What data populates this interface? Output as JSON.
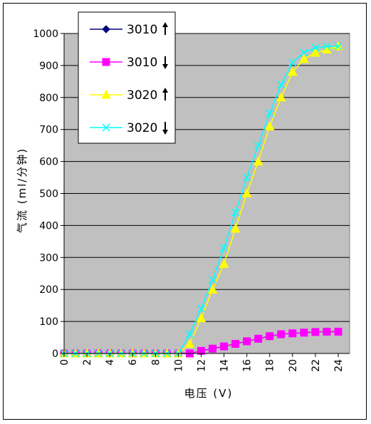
{
  "chart_data": {
    "type": "line",
    "xlabel": "电压 (V)",
    "ylabel": "气流 (ml/分钟)",
    "xlim": [
      0,
      25
    ],
    "ylim": [
      0,
      1000
    ],
    "x_ticks": [
      0,
      2,
      4,
      6,
      8,
      10,
      12,
      14,
      16,
      18,
      20,
      22,
      24
    ],
    "y_ticks": [
      0,
      100,
      200,
      300,
      400,
      500,
      600,
      700,
      800,
      900,
      1000
    ],
    "grid": "horizontal",
    "plot_background": "#c0c0c0",
    "legend_position": "top-left",
    "x": [
      0,
      1,
      2,
      3,
      4,
      5,
      6,
      7,
      8,
      9,
      10,
      11,
      12,
      13,
      14,
      15,
      16,
      17,
      18,
      19,
      20,
      21,
      22,
      23,
      24
    ],
    "series": [
      {
        "name": "3010",
        "arrow": "up",
        "color": "#000080",
        "marker": "diamond",
        "values": [
          0,
          0,
          0,
          0,
          0,
          0,
          0,
          0,
          0,
          0,
          0,
          0,
          8,
          15,
          22,
          30,
          38,
          46,
          54,
          60,
          63,
          65,
          67,
          68,
          68
        ]
      },
      {
        "name": "3010",
        "arrow": "down",
        "color": "#ff00ff",
        "marker": "square",
        "values": [
          0,
          0,
          0,
          0,
          0,
          0,
          0,
          0,
          0,
          0,
          0,
          0,
          8,
          15,
          22,
          30,
          38,
          46,
          54,
          60,
          63,
          65,
          67,
          68,
          68
        ]
      },
      {
        "name": "3020",
        "arrow": "up",
        "color": "#ffff00",
        "marker": "triangle",
        "values": [
          0,
          0,
          0,
          0,
          0,
          0,
          0,
          0,
          0,
          0,
          0,
          30,
          110,
          200,
          280,
          390,
          500,
          600,
          710,
          800,
          880,
          920,
          940,
          950,
          960
        ]
      },
      {
        "name": "3020",
        "arrow": "down",
        "color": "#00ffff",
        "marker": "x",
        "values": [
          0,
          0,
          0,
          0,
          0,
          0,
          0,
          0,
          0,
          0,
          0,
          60,
          140,
          230,
          330,
          440,
          550,
          650,
          750,
          840,
          910,
          940,
          955,
          960,
          960
        ]
      }
    ]
  }
}
